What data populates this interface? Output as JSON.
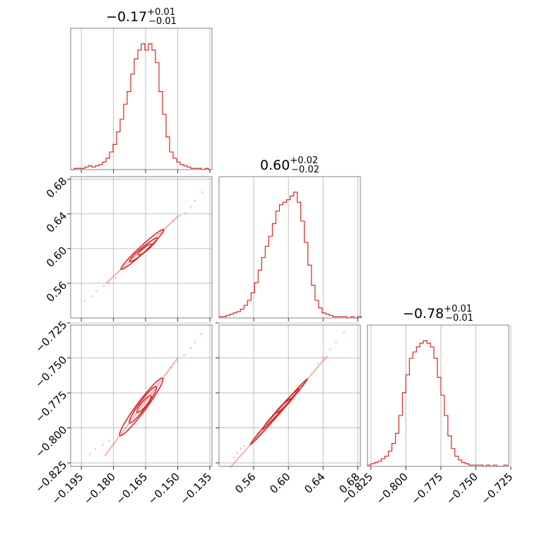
{
  "chart_data": {
    "type": "scatter",
    "kind": "corner-plot",
    "color": "#d62728",
    "grid": true,
    "parameters": [
      {
        "median": -0.17,
        "plus": 0.01,
        "minus": 0.01,
        "title": {
          "value": "−0.17",
          "sup": "+0.01",
          "sub": "−0.01"
        },
        "range": [
          -0.2,
          -0.134
        ],
        "ticks": [
          -0.195,
          -0.18,
          -0.165,
          -0.15,
          -0.135
        ],
        "tick_labels": [
          "−0.195",
          "−0.180",
          "−0.165",
          "−0.150",
          "−0.135"
        ],
        "hist": {
          "start": -0.2,
          "bin_width": 0.00165,
          "counts": [
            0,
            1,
            1,
            1,
            2,
            3,
            2,
            3,
            4,
            6,
            9,
            14,
            20,
            30,
            40,
            52,
            62,
            76,
            88,
            95,
            100,
            95,
            100,
            95,
            85,
            62,
            44,
            26,
            14,
            9,
            6,
            4,
            3,
            2,
            1,
            1,
            1,
            0,
            1,
            0
          ]
        }
      },
      {
        "median": 0.6,
        "plus": 0.02,
        "minus": 0.02,
        "title": {
          "value": "0.60",
          "sup": "+0.02",
          "sub": "−0.02"
        },
        "range": [
          0.52,
          0.683
        ],
        "ticks": [
          0.56,
          0.6,
          0.64,
          0.68
        ],
        "tick_labels": [
          "0.56",
          "0.60",
          "0.64",
          "0.68"
        ],
        "hist": {
          "start": 0.52,
          "bin_width": 0.0041,
          "counts": [
            1,
            1,
            2,
            3,
            4,
            5,
            7,
            10,
            14,
            20,
            28,
            38,
            48,
            57,
            65,
            75,
            85,
            90,
            92,
            94,
            97,
            100,
            92,
            77,
            60,
            42,
            26,
            14,
            8,
            4,
            3,
            2,
            1,
            1,
            1,
            1,
            0,
            1,
            0,
            1
          ]
        }
      },
      {
        "median": -0.78,
        "plus": 0.01,
        "minus": 0.01,
        "title": {
          "value": "−0.78",
          "sup": "+0.01",
          "sub": "−0.01"
        },
        "range": [
          -0.8275,
          -0.7265
        ],
        "ticks": [
          -0.825,
          -0.8,
          -0.775,
          -0.75,
          -0.725
        ],
        "tick_labels": [
          "−0.825",
          "−0.800",
          "−0.775",
          "−0.750",
          "−0.725"
        ],
        "hist": {
          "start": -0.8275,
          "bin_width": 0.0025,
          "counts": [
            1,
            2,
            3,
            4,
            6,
            8,
            12,
            18,
            26,
            40,
            58,
            72,
            85,
            90,
            94,
            97,
            99,
            97,
            94,
            85,
            70,
            56,
            40,
            24,
            14,
            8,
            5,
            3,
            2,
            1,
            1,
            1,
            1,
            0,
            1,
            0,
            1,
            0,
            0,
            1
          ]
        }
      }
    ],
    "pairs": [
      {
        "x_param": 0,
        "y_param": 1,
        "correlation": 0.98,
        "contours": [
          {
            "x": [
              -0.1765,
              -0.1565
            ],
            "y": [
              0.576,
              0.622
            ]
          },
          {
            "x": [
              -0.1725,
              -0.1595
            ],
            "y": [
              0.585,
              0.612
            ]
          },
          {
            "x": [
              -0.1685,
              -0.162
            ],
            "y": [
              0.593,
              0.605
            ]
          }
        ],
        "outliers": [
          {
            "x": -0.1935,
            "y": 0.54
          },
          {
            "x": -0.19,
            "y": 0.545
          },
          {
            "x": -0.188,
            "y": 0.551
          },
          {
            "x": -0.1845,
            "y": 0.557
          },
          {
            "x": -0.182,
            "y": 0.56
          },
          {
            "x": -0.179,
            "y": 0.566
          },
          {
            "x": -0.152,
            "y": 0.632
          },
          {
            "x": -0.149,
            "y": 0.638
          },
          {
            "x": -0.1465,
            "y": 0.641
          },
          {
            "x": -0.144,
            "y": 0.648
          },
          {
            "x": -0.142,
            "y": 0.655
          },
          {
            "x": -0.1385,
            "y": 0.665
          }
        ]
      },
      {
        "x_param": 0,
        "y_param": 2,
        "correlation": 0.97,
        "contours": [
          {
            "x": [
              -0.177,
              -0.157
            ],
            "y": [
              -0.8055,
              -0.7645
            ]
          },
          {
            "x": [
              -0.1725,
              -0.16
            ],
            "y": [
              -0.7965,
              -0.7705
            ]
          },
          {
            "x": [
              -0.169,
              -0.1625
            ],
            "y": [
              -0.789,
              -0.777
            ]
          }
        ],
        "outliers": [
          {
            "x": -0.191,
            "y": -0.819
          },
          {
            "x": -0.1885,
            "y": -0.815
          },
          {
            "x": -0.185,
            "y": -0.812
          },
          {
            "x": -0.182,
            "y": -0.809
          },
          {
            "x": -0.153,
            "y": -0.757
          },
          {
            "x": -0.15,
            "y": -0.753
          },
          {
            "x": -0.147,
            "y": -0.748
          },
          {
            "x": -0.144,
            "y": -0.743
          },
          {
            "x": -0.142,
            "y": -0.739
          },
          {
            "x": -0.139,
            "y": -0.733
          }
        ]
      },
      {
        "x_param": 1,
        "y_param": 2,
        "correlation": 0.998,
        "contours": [
          {
            "x": [
              0.556,
              0.622
            ],
            "y": [
              -0.812,
              -0.765
            ]
          },
          {
            "x": [
              0.57,
              0.612
            ],
            "y": [
              -0.801,
              -0.772
            ]
          },
          {
            "x": [
              0.586,
              0.604
            ],
            "y": [
              -0.789,
              -0.779
            ]
          }
        ],
        "outliers": [
          {
            "x": 0.537,
            "y": -0.821
          },
          {
            "x": 0.541,
            "y": -0.818
          },
          {
            "x": 0.545,
            "y": -0.815
          },
          {
            "x": 0.549,
            "y": -0.813
          },
          {
            "x": 0.634,
            "y": -0.754
          },
          {
            "x": 0.64,
            "y": -0.75
          },
          {
            "x": 0.648,
            "y": -0.744
          },
          {
            "x": 0.655,
            "y": -0.739
          },
          {
            "x": 0.664,
            "y": -0.732
          }
        ]
      }
    ]
  }
}
